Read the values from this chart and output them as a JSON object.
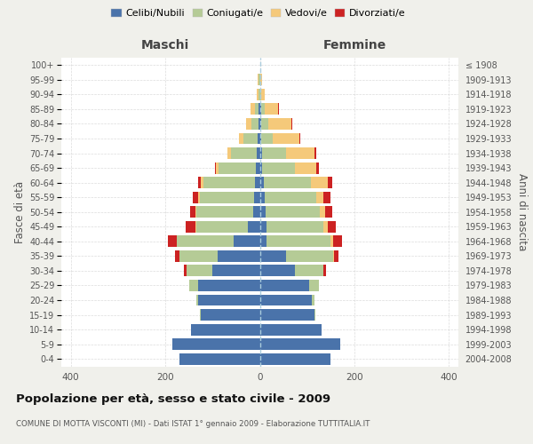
{
  "age_groups": [
    "0-4",
    "5-9",
    "10-14",
    "15-19",
    "20-24",
    "25-29",
    "30-34",
    "35-39",
    "40-44",
    "45-49",
    "50-54",
    "55-59",
    "60-64",
    "65-69",
    "70-74",
    "75-79",
    "80-84",
    "85-89",
    "90-94",
    "95-99",
    "100+"
  ],
  "birth_years": [
    "2004-2008",
    "1999-2003",
    "1994-1998",
    "1989-1993",
    "1984-1988",
    "1979-1983",
    "1974-1978",
    "1969-1973",
    "1964-1968",
    "1959-1963",
    "1954-1958",
    "1949-1953",
    "1944-1948",
    "1939-1943",
    "1934-1938",
    "1929-1933",
    "1924-1928",
    "1919-1923",
    "1914-1918",
    "1909-1913",
    "≤ 1908"
  ],
  "maschi": {
    "celibi": [
      170,
      185,
      145,
      125,
      130,
      130,
      100,
      90,
      55,
      25,
      15,
      12,
      10,
      8,
      6,
      4,
      3,
      2,
      0,
      0,
      0
    ],
    "coniugati": [
      0,
      0,
      0,
      2,
      5,
      20,
      55,
      80,
      120,
      110,
      120,
      115,
      110,
      80,
      55,
      30,
      15,
      8,
      3,
      2,
      0
    ],
    "vedovi": [
      0,
      0,
      0,
      0,
      0,
      0,
      0,
      0,
      1,
      1,
      2,
      4,
      5,
      5,
      8,
      10,
      12,
      10,
      4,
      2,
      0
    ],
    "divorziati": [
      0,
      0,
      0,
      0,
      0,
      0,
      5,
      10,
      18,
      20,
      10,
      10,
      5,
      2,
      0,
      0,
      0,
      0,
      0,
      0,
      0
    ]
  },
  "femmine": {
    "nubili": [
      150,
      170,
      130,
      115,
      110,
      105,
      75,
      55,
      15,
      15,
      12,
      10,
      8,
      5,
      5,
      3,
      2,
      2,
      0,
      0,
      0
    ],
    "coniugate": [
      0,
      0,
      0,
      2,
      5,
      20,
      60,
      100,
      135,
      120,
      115,
      110,
      100,
      70,
      50,
      25,
      15,
      8,
      2,
      1,
      0
    ],
    "vedove": [
      0,
      0,
      0,
      0,
      0,
      0,
      0,
      2,
      5,
      8,
      12,
      15,
      35,
      45,
      60,
      55,
      50,
      28,
      8,
      3,
      0
    ],
    "divorziate": [
      0,
      0,
      0,
      0,
      0,
      0,
      5,
      10,
      18,
      18,
      15,
      15,
      10,
      5,
      5,
      3,
      2,
      2,
      0,
      0,
      0
    ]
  },
  "colors": {
    "celibi": "#4a73aa",
    "coniugati": "#b5cb96",
    "vedovi": "#f5c97a",
    "divorziati": "#cc2222"
  },
  "xlim": 420,
  "title": "Popolazione per età, sesso e stato civile - 2009",
  "subtitle": "COMUNE DI MOTTA VISCONTI (MI) - Dati ISTAT 1° gennaio 2009 - Elaborazione TUTTITALIA.IT",
  "ylabel_left": "Fasce di età",
  "ylabel_right": "Anni di nascita",
  "label_maschi": "Maschi",
  "label_femmine": "Femmine",
  "legend_labels": [
    "Celibi/Nubili",
    "Coniugati/e",
    "Vedovi/e",
    "Divorziati/e"
  ],
  "background_color": "#f0f0eb",
  "plot_bg": "#ffffff",
  "grid_color": "#cccccc"
}
